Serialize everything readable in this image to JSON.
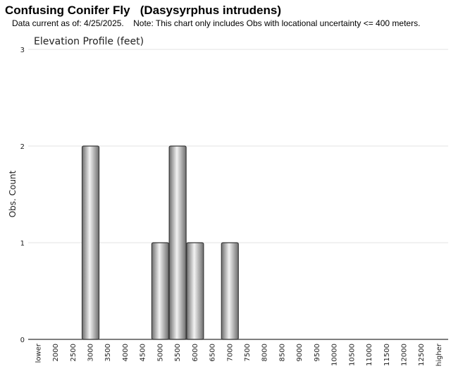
{
  "header": {
    "title": "Confusing Conifer Fly   (Dasysyrphus intrudens)",
    "subtitle": "Data current as of: 4/25/2025.    Note: This chart only includes Obs with locational uncertainty <= 400 meters."
  },
  "chart_data": {
    "type": "bar",
    "title": "Elevation Profile (feet)",
    "xlabel": "",
    "ylabel": "Obs. Count",
    "ylim": [
      0,
      3
    ],
    "yticks": [
      "0",
      "1",
      "2",
      "3"
    ],
    "grid": true,
    "categories": [
      "lower",
      "2000",
      "2500",
      "3000",
      "3500",
      "4000",
      "4500",
      "5000",
      "5500",
      "6000",
      "6500",
      "7000",
      "7500",
      "8000",
      "8500",
      "9000",
      "9500",
      "10000",
      "10500",
      "11000",
      "11500",
      "12000",
      "12500",
      "higher"
    ],
    "values": [
      0,
      0,
      0,
      2,
      0,
      0,
      0,
      1,
      2,
      1,
      0,
      1,
      0,
      0,
      0,
      0,
      0,
      0,
      0,
      0,
      0,
      0,
      0,
      0
    ],
    "colors": {
      "bar_dark": "#6e6e6e",
      "bar_light": "#f2f2f2",
      "bar_edge": "#3a3a3a",
      "grid": "#e3e3e3",
      "axis": "#333333"
    }
  }
}
